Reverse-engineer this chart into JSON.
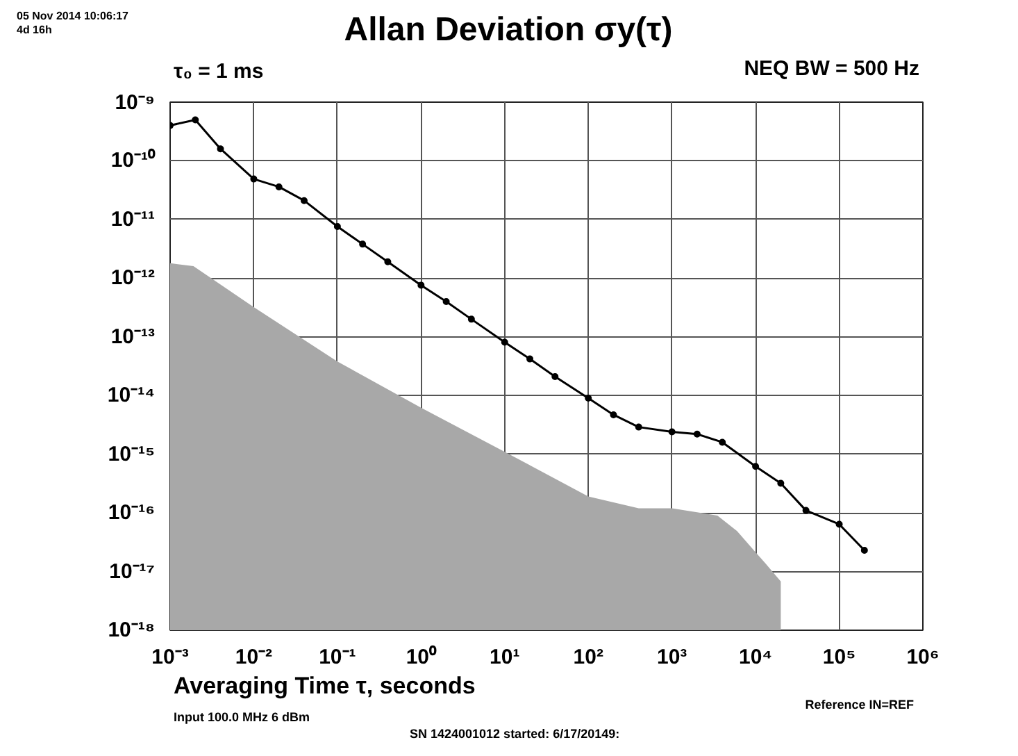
{
  "chart_data": {
    "type": "line",
    "title": "Allan Deviation σy(τ)",
    "xlabel": "Averaging Time τ, seconds",
    "log": "xy",
    "grid": true,
    "xlim": [
      0.001,
      1000000
    ],
    "ylim": [
      1e-18,
      1e-09
    ],
    "xticks": [
      {
        "value": 0.001,
        "label": "10⁻³"
      },
      {
        "value": 0.01,
        "label": "10⁻²"
      },
      {
        "value": 0.1,
        "label": "10⁻¹"
      },
      {
        "value": 1,
        "label": "10⁰"
      },
      {
        "value": 10,
        "label": "10¹"
      },
      {
        "value": 100,
        "label": "10²"
      },
      {
        "value": 1000,
        "label": "10³"
      },
      {
        "value": 10000,
        "label": "10⁴"
      },
      {
        "value": 100000,
        "label": "10⁵"
      },
      {
        "value": 1000000,
        "label": "10⁶"
      }
    ],
    "yticks": [
      {
        "value": 1e-18,
        "label": "10⁻¹⁸"
      },
      {
        "value": 1e-17,
        "label": "10⁻¹⁷"
      },
      {
        "value": 1e-16,
        "label": "10⁻¹⁶"
      },
      {
        "value": 1e-15,
        "label": "10⁻¹⁵"
      },
      {
        "value": 1e-14,
        "label": "10⁻¹⁴"
      },
      {
        "value": 1e-13,
        "label": "10⁻¹³"
      },
      {
        "value": 1e-12,
        "label": "10⁻¹²"
      },
      {
        "value": 1e-11,
        "label": "10⁻¹¹"
      },
      {
        "value": 1e-10,
        "label": "10⁻¹⁰"
      },
      {
        "value": 1e-09,
        "label": "10⁻⁹"
      }
    ],
    "series": [
      {
        "type": "area",
        "color": "#a8a8a8",
        "x": [
          0.001,
          0.0019,
          0.01,
          0.1,
          1,
          10,
          100,
          400,
          1000,
          3500,
          6000,
          9300,
          13000,
          20000
        ],
        "values": [
          1.8e-12,
          1.6e-12,
          3.2e-13,
          3.8e-14,
          6.2e-15,
          1.1e-15,
          1.9e-16,
          1.2e-16,
          1.2e-16,
          9e-17,
          4.9e-17,
          2.4e-17,
          1.4e-17,
          6.8e-18
        ]
      },
      {
        "marker": "circle",
        "color": "#000000",
        "x": [
          0.001,
          0.002,
          0.004,
          0.01,
          0.02,
          0.04,
          0.1,
          0.2,
          0.4,
          1,
          2,
          4,
          10,
          20,
          40,
          100,
          200,
          400,
          1000,
          2000,
          4000,
          10000,
          20000,
          40000,
          100000,
          200000
        ],
        "values": [
          4e-10,
          5e-10,
          1.6e-10,
          4.9e-11,
          3.6e-11,
          2.1e-11,
          7.6e-12,
          3.8e-12,
          1.9e-12,
          7.6e-13,
          4e-13,
          2e-13,
          8.1e-14,
          4.2e-14,
          2.1e-14,
          9e-15,
          4.7e-15,
          2.9e-15,
          2.4e-15,
          2.2e-15,
          1.6e-15,
          6.2e-16,
          3.2e-16,
          1.1e-16,
          6.4e-17,
          2.3e-17
        ]
      }
    ],
    "annotations": [
      "05 Nov 2014 10:06:17",
      "4d 16h",
      "τ₀ = 1 ms",
      "NEQ BW = 500 Hz",
      "Input 100.0 MHz 6 dBm",
      "SN 1424001012 started: 6/17/20149:",
      "Reference IN=REF"
    ]
  }
}
